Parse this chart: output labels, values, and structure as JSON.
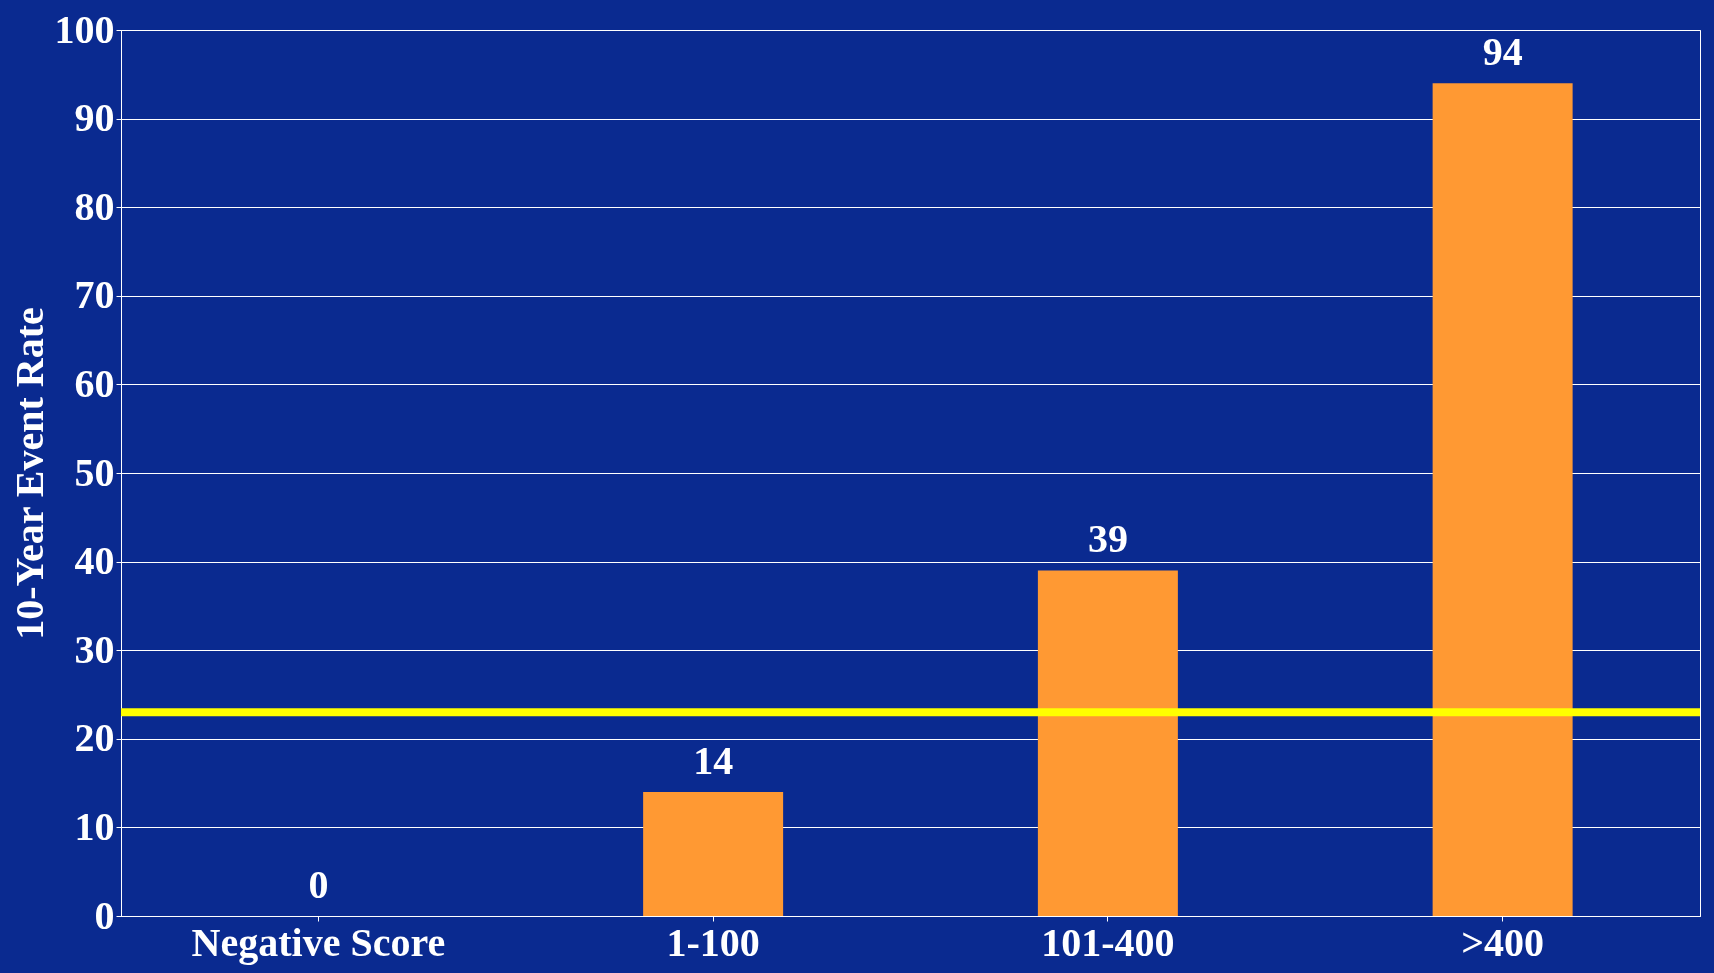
{
  "chart_data": {
    "type": "bar",
    "ylabel": "10-Year Event Rate",
    "categories": [
      "Negative Score",
      "1-100",
      "101-400",
      ">400"
    ],
    "values": [
      0,
      14,
      39,
      94
    ],
    "color": "#ff9933",
    "ylim": [
      0,
      100
    ],
    "yticks": [
      0,
      10,
      20,
      30,
      40,
      50,
      60,
      70,
      80,
      90,
      100
    ],
    "grid": "y",
    "data_labels": true,
    "ref_lines": [
      {
        "axis": "y",
        "value": 23,
        "color": "#ffff00",
        "line_style": "solid"
      }
    ]
  }
}
